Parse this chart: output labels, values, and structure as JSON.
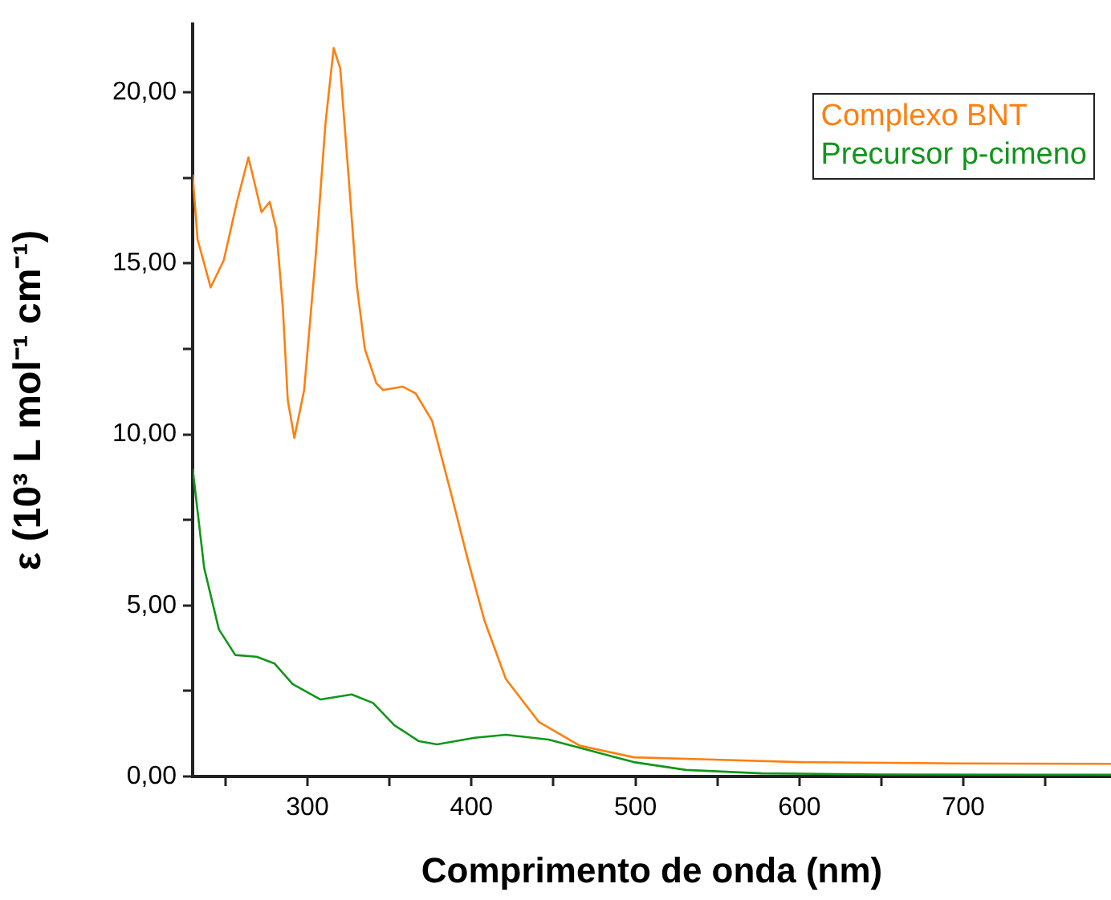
{
  "chart_data": {
    "type": "line",
    "xlabel": "Comprimento de onda (nm)",
    "ylabel": "ε (10³ L mol⁻¹ cm⁻¹)",
    "xlim": [
      230,
      790
    ],
    "xticks": [
      {
        "value": 250,
        "label": null
      },
      300,
      {
        "value": 350,
        "label": null
      },
      400,
      {
        "value": 450,
        "label": null
      },
      500,
      {
        "value": 550,
        "label": null
      },
      600,
      {
        "value": 650,
        "label": null
      },
      700,
      {
        "value": 750,
        "label": null
      }
    ],
    "ylim": [
      0,
      22
    ],
    "yticks": [
      {
        "value": 0,
        "label": "0,00"
      },
      {
        "value": 2.5,
        "label": null
      },
      {
        "value": 5,
        "label": "5,00"
      },
      {
        "value": 7.5,
        "label": null
      },
      {
        "value": 10,
        "label": "10,00"
      },
      {
        "value": 12.5,
        "label": null
      },
      {
        "value": 15,
        "label": "15,00"
      },
      {
        "value": 17.5,
        "label": null
      },
      {
        "value": 20,
        "label": "20,00"
      }
    ],
    "grid": false,
    "legend": "top right",
    "marker": "none",
    "line_style": "solid",
    "series": [
      {
        "name": "Complexo BNT",
        "color": "#ff7f0e",
        "x": [
          230,
          233,
          241,
          249,
          257,
          264,
          272,
          277,
          281,
          285,
          288,
          292,
          298,
          305,
          311,
          316,
          320,
          325,
          330,
          335,
          342,
          346,
          358,
          366,
          376,
          388,
          398,
          408,
          421,
          441,
          466,
          499,
          544,
          600,
          700,
          790
        ],
        "values": [
          17.6,
          15.7,
          14.3,
          15.1,
          16.8,
          18.1,
          16.5,
          16.8,
          16.0,
          13.7,
          11.0,
          9.9,
          11.3,
          15.2,
          19.1,
          21.3,
          20.7,
          17.6,
          14.4,
          12.5,
          11.5,
          11.3,
          11.4,
          11.2,
          10.4,
          8.2,
          6.3,
          4.55,
          2.85,
          1.6,
          0.9,
          0.56,
          0.5,
          0.42,
          0.38,
          0.37
        ]
      },
      {
        "name": "Precursor p-cimeno",
        "color": "#11961b",
        "x": [
          230,
          237,
          246,
          256,
          269,
          280,
          291,
          308,
          327,
          340,
          353,
          368,
          379,
          402,
          421,
          447,
          473,
          499,
          531,
          577,
          650,
          790
        ],
        "values": [
          9.0,
          6.1,
          4.3,
          3.55,
          3.5,
          3.3,
          2.7,
          2.25,
          2.4,
          2.15,
          1.5,
          1.03,
          0.94,
          1.13,
          1.22,
          1.08,
          0.75,
          0.42,
          0.19,
          0.09,
          0.06,
          0.05
        ]
      }
    ]
  }
}
